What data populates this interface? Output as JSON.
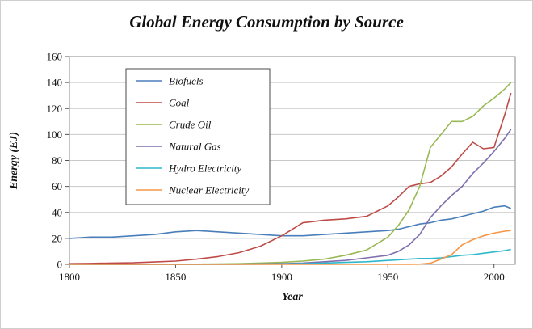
{
  "chart_data": {
    "type": "line",
    "title": "Global Energy Consumption by Source",
    "xlabel": "Year",
    "ylabel": "Energy (EJ)",
    "xlim": [
      1800,
      2010
    ],
    "ylim": [
      0,
      160
    ],
    "xticks": [
      1800,
      1850,
      1900,
      1950,
      2000
    ],
    "yticks": [
      0,
      20,
      40,
      60,
      80,
      100,
      120,
      140,
      160
    ],
    "grid": "horizontal",
    "legend_position": "upper-left-inside",
    "x": [
      1800,
      1810,
      1820,
      1830,
      1840,
      1850,
      1860,
      1870,
      1880,
      1890,
      1900,
      1910,
      1920,
      1930,
      1940,
      1950,
      1955,
      1960,
      1965,
      1970,
      1975,
      1980,
      1985,
      1990,
      1995,
      2000,
      2005,
      2008
    ],
    "series": [
      {
        "name": "Biofuels",
        "color": "#4a7ebb",
        "values": [
          20,
          21,
          21,
          22,
          23,
          25,
          26,
          25,
          24,
          23,
          22,
          22,
          23,
          24,
          25,
          26,
          27,
          29,
          31,
          32,
          34,
          35,
          37,
          39,
          41,
          44,
          45,
          43
        ]
      },
      {
        "name": "Coal",
        "color": "#be4b48",
        "values": [
          0.5,
          0.7,
          1,
          1.2,
          1.8,
          2.5,
          4,
          6,
          9,
          14,
          22,
          32,
          34,
          35,
          37,
          45,
          52,
          60,
          62,
          63,
          68,
          75,
          85,
          94,
          89,
          90,
          115,
          132
        ]
      },
      {
        "name": "Crude Oil",
        "color": "#98b954",
        "values": [
          0,
          0,
          0,
          0,
          0,
          0,
          0.1,
          0.3,
          0.5,
          1,
          1.5,
          2.5,
          4,
          7,
          11,
          21,
          30,
          42,
          60,
          90,
          100,
          110,
          110,
          114,
          122,
          128,
          135,
          140
        ]
      },
      {
        "name": "Natural Gas",
        "color": "#7f6faf",
        "values": [
          0,
          0,
          0,
          0,
          0,
          0,
          0,
          0,
          0.1,
          0.3,
          0.5,
          1,
          2,
          3,
          5,
          7,
          10,
          15,
          23,
          36,
          45,
          53,
          60,
          70,
          78,
          87,
          97,
          104
        ]
      },
      {
        "name": "Hydro Electricity",
        "color": "#2eb8c9",
        "values": [
          0,
          0,
          0,
          0,
          0,
          0,
          0,
          0,
          0,
          0.1,
          0.2,
          0.5,
          1,
          1.5,
          2,
          3,
          3.5,
          4,
          4.5,
          4.5,
          5,
          6,
          7,
          7.5,
          8.5,
          9.5,
          10.5,
          11.5
        ]
      },
      {
        "name": "Nuclear Electricity",
        "color": "#f79646",
        "values": [
          0,
          0,
          0,
          0,
          0,
          0,
          0,
          0,
          0,
          0,
          0,
          0,
          0,
          0,
          0,
          0,
          0,
          0,
          0.1,
          0.9,
          4,
          7.5,
          15,
          19,
          22,
          24,
          25.5,
          26
        ]
      }
    ]
  }
}
